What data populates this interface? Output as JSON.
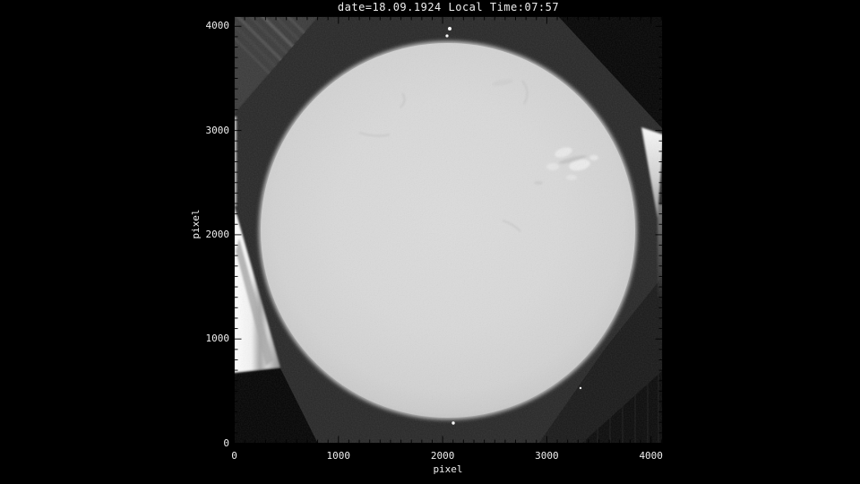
{
  "title": "date=18.09.1924 Local Time:07:57",
  "axes": {
    "x": {
      "label": "pixel",
      "tick_values": [
        0,
        1000,
        2000,
        3000,
        4000
      ]
    },
    "y": {
      "label": "pixel",
      "tick_values": [
        0,
        1000,
        2000,
        3000,
        4000
      ]
    }
  },
  "colors": {
    "background": "#000000",
    "text": "#efefef",
    "plate": "#282828",
    "corner_shadow": "#040404",
    "solar_disk": "#d9d9d9",
    "light_leak": "#ffffff",
    "ticks": "#000000"
  },
  "chart_data": {
    "type": "heatmap",
    "title": "date=18.09.1924 Local Time:07:57",
    "xlabel": "pixel",
    "ylabel": "pixel",
    "xlim": [
      0,
      4100
    ],
    "ylim": [
      0,
      4100
    ],
    "x_ticks": [
      0,
      1000,
      2000,
      3000,
      4000
    ],
    "y_ticks": [
      0,
      1000,
      2000,
      3000,
      4000
    ],
    "minor_tick_step": 100,
    "grid": false,
    "legend": false,
    "content": "Digitized historical photographic plate showing the full solar disk on a dark plate with black scanner corners and bright light leaks at the plate edges",
    "features": {
      "solar_disk": {
        "center": [
          2055,
          2042
        ],
        "radius": 1800,
        "tone": "light gray with slight limb darkening and faint filament wisps"
      },
      "faculae_region": {
        "center": [
          3270,
          2680
        ],
        "note": "bright mottled plage near upper-right limb"
      },
      "plate_defect_dots": [
        [
          2072,
          3975
        ],
        [
          2046,
          3908
        ],
        [
          2106,
          193
        ],
        [
          3328,
          529
        ]
      ],
      "dark_corners": [
        "top-right",
        "bottom-left",
        "bottom-right"
      ],
      "light_leaks": [
        "left edge mid-lower wedge",
        "right edge upper wedge"
      ]
    }
  }
}
